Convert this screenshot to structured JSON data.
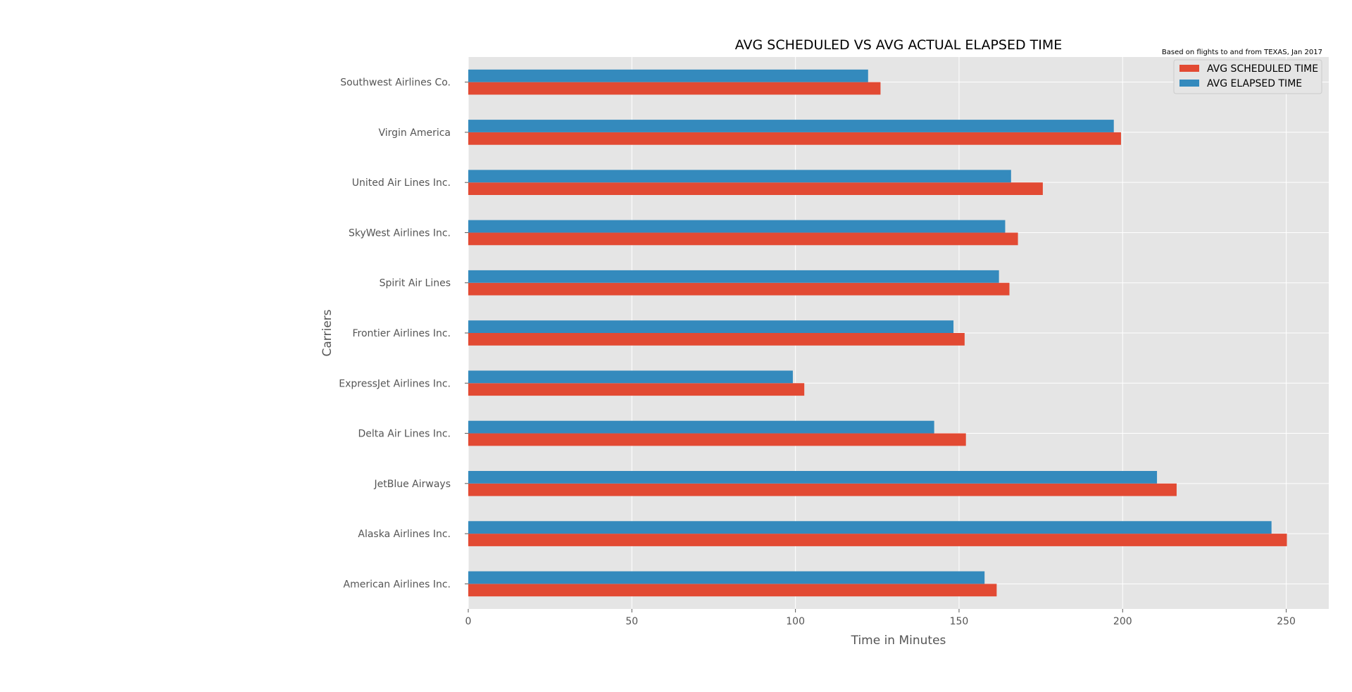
{
  "chart_data": {
    "type": "bar",
    "orientation": "horizontal",
    "title": "AVG SCHEDULED VS AVG ACTUAL ELAPSED TIME",
    "subtitle": "Based on flights to and from TEXAS, Jan 2017",
    "xlabel": "Time in Minutes",
    "ylabel": "Carriers",
    "xlim": [
      0,
      263
    ],
    "xticks": [
      0,
      50,
      100,
      150,
      200,
      250
    ],
    "grid": true,
    "legend_position": "top-right",
    "categories": [
      "American Airlines Inc.",
      "Alaska Airlines Inc.",
      "JetBlue Airways",
      "Delta Air Lines Inc.",
      "ExpressJet Airlines Inc.",
      "Frontier Airlines Inc.",
      "Spirit Air Lines",
      "SkyWest Airlines Inc.",
      "United Air Lines Inc.",
      "Virgin America",
      "Southwest Airlines Co."
    ],
    "series": [
      {
        "name": "AVG SCHEDULED TIME",
        "color": "#E24A33",
        "values": [
          161.5,
          250.2,
          216.5,
          152.1,
          102.7,
          151.7,
          165.4,
          168.0,
          175.6,
          199.5,
          126.0
        ]
      },
      {
        "name": "AVG ELAPSED TIME",
        "color": "#348ABD",
        "values": [
          157.8,
          245.5,
          210.5,
          142.4,
          99.2,
          148.3,
          162.2,
          164.1,
          165.9,
          197.3,
          122.2
        ]
      }
    ]
  },
  "colors": {
    "plot_background": "#E5E5E5",
    "grid": "#FFFFFF",
    "legend_border": "#CCCCCC"
  }
}
